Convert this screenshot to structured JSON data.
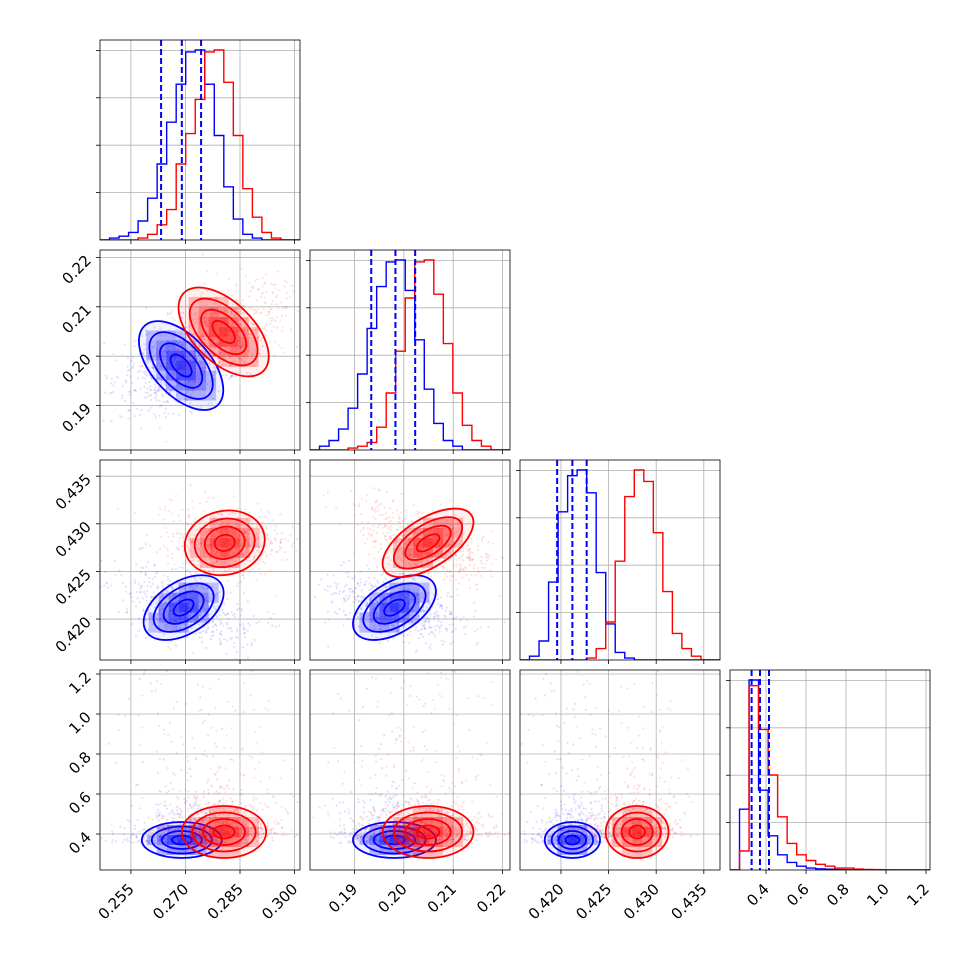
{
  "chart_data": {
    "type": "corner",
    "colors": {
      "blue": "#0000ff",
      "red": "#ff0000"
    },
    "grid": true,
    "parameters": [
      {
        "key": "p0",
        "range": [
          0.2465,
          0.3015
        ],
        "ticks": [
          0.255,
          0.27,
          0.285,
          0.3
        ],
        "tick_labels": [
          "0.255",
          "0.270",
          "0.285",
          "0.300"
        ]
      },
      {
        "key": "p1",
        "range": [
          0.181,
          0.2215
        ],
        "ticks": [
          0.19,
          0.2,
          0.21,
          0.22
        ],
        "tick_labels": [
          "0.19",
          "0.20",
          "0.21",
          "0.22"
        ]
      },
      {
        "key": "p2",
        "range": [
          0.4157,
          0.4367
        ],
        "ticks": [
          0.42,
          0.425,
          0.43,
          0.435
        ],
        "tick_labels": [
          "0.420",
          "0.425",
          "0.430",
          "0.435"
        ]
      },
      {
        "key": "p3",
        "range": [
          0.22,
          1.22
        ],
        "ticks": [
          0.4,
          0.6,
          0.8,
          1.0,
          1.2
        ],
        "tick_labels": [
          "0.4",
          "0.6",
          "0.8",
          "1.0",
          "1.2"
        ]
      }
    ],
    "series": [
      {
        "name": "",
        "color": "#0000ff",
        "means": [
          0.269,
          0.1983,
          0.4212,
          0.37
        ],
        "quantiles": [
          [
            0.2633,
            0.269,
            0.2743
          ],
          [
            0.1934,
            0.1983,
            0.2023
          ],
          [
            0.4196,
            0.4212,
            0.4227
          ],
          [
            0.328,
            0.37,
            0.415
          ]
        ],
        "hist": [
          {
            "edges": [
              0.2465,
              0.3015
            ],
            "counts": [
              0,
              1,
              2,
              4,
              10,
              22,
              40,
              62,
              82,
              99,
              100,
              82,
              55,
              28,
              11,
              3,
              1,
              0,
              0,
              0,
              0
            ]
          },
          {
            "edges": [
              0.181,
              0.2215
            ],
            "counts": [
              0,
              2,
              5,
              11,
              22,
              40,
              64,
              86,
              99,
              100,
              84,
              58,
              32,
              14,
              5,
              2,
              0,
              0,
              0,
              0,
              0
            ]
          },
          {
            "edges": [
              0.4157,
              0.4367
            ],
            "counts": [
              0,
              2,
              10,
              41,
              78,
              97,
              100,
              88,
              46,
              19,
              4,
              1,
              0,
              0,
              0,
              0,
              0,
              0,
              0,
              0,
              0
            ]
          },
          {
            "edges": [
              0.22,
              1.22
            ],
            "counts": [
              0,
              32,
              100,
              42,
              18,
              8,
              4,
              2,
              1,
              0.6,
              0.4,
              0.2,
              0.1,
              0,
              0,
              0,
              0,
              0,
              0,
              0,
              0
            ]
          }
        ],
        "pairs": [
          {
            "x": 0,
            "y": 1,
            "center": [
              0.2688,
              0.1981
            ],
            "sx": 0.0058,
            "sy": 0.0045,
            "corr": -0.55
          },
          {
            "x": 0,
            "y": 2,
            "center": [
              0.2695,
              0.4212
            ],
            "sx": 0.0055,
            "sy": 0.0017,
            "corr": 0.45
          },
          {
            "x": 0,
            "y": 3,
            "center": [
              0.269,
              0.37
            ],
            "sx": 0.0055,
            "sy": 0.045,
            "corr": 0.0
          },
          {
            "x": 1,
            "y": 2,
            "center": [
              0.1981,
              0.4212
            ],
            "sx": 0.0042,
            "sy": 0.0017,
            "corr": 0.5
          },
          {
            "x": 1,
            "y": 3,
            "center": [
              0.1981,
              0.37
            ],
            "sx": 0.0042,
            "sy": 0.045,
            "corr": 0.0
          },
          {
            "x": 2,
            "y": 3,
            "center": [
              0.4212,
              0.37
            ],
            "sx": 0.00145,
            "sy": 0.045,
            "corr": 0.0
          }
        ]
      },
      {
        "name": "",
        "color": "#ff0000",
        "means": [
          0.281,
          0.2049,
          0.428,
          0.41
        ],
        "quantiles": [
          [
            0.276,
            0.281,
            0.286
          ],
          [
            0.2005,
            0.2049,
            0.209
          ],
          [
            0.4265,
            0.428,
            0.4295
          ],
          [
            0.35,
            0.41,
            0.5
          ]
        ],
        "hist": [
          {
            "edges": [
              0.2465,
              0.3015
            ],
            "counts": [
              0,
              0,
              0,
              0,
              1,
              3,
              8,
              16,
              40,
              56,
              74,
              99,
              100,
              83,
              55,
              27,
              12,
              4,
              1,
              0,
              0
            ]
          },
          {
            "edges": [
              0.181,
              0.2215
            ],
            "counts": [
              0,
              0,
              0,
              0,
              1,
              2,
              4,
              12,
              30,
              52,
              80,
              99,
              100,
              82,
              56,
              30,
              13,
              5,
              2,
              0,
              0
            ]
          },
          {
            "edges": [
              0.4157,
              0.4367
            ],
            "counts": [
              0,
              0,
              0,
              0,
              0,
              0,
              0,
              1,
              6,
              20,
              52,
              86,
              100,
              94,
              67,
              36,
              14,
              6,
              2,
              0,
              0
            ]
          },
          {
            "edges": [
              0.22,
              1.22
            ],
            "counts": [
              0,
              10,
              97,
              74,
              50,
              28,
              14,
              8,
              5,
              3,
              2,
              1,
              1,
              0.5,
              0.3,
              0.2,
              0.1,
              0,
              0,
              0,
              0
            ]
          }
        ],
        "pairs": [
          {
            "x": 0,
            "y": 1,
            "center": [
              0.2805,
              0.2049
            ],
            "sx": 0.0062,
            "sy": 0.0045,
            "corr": -0.55
          },
          {
            "x": 0,
            "y": 2,
            "center": [
              0.2808,
              0.428
            ],
            "sx": 0.0055,
            "sy": 0.0017,
            "corr": 0.1
          },
          {
            "x": 0,
            "y": 3,
            "center": [
              0.2806,
              0.41
            ],
            "sx": 0.0058,
            "sy": 0.065,
            "corr": 0.0
          },
          {
            "x": 1,
            "y": 2,
            "center": [
              0.2049,
              0.428
            ],
            "sx": 0.0046,
            "sy": 0.0018,
            "corr": 0.6
          },
          {
            "x": 1,
            "y": 3,
            "center": [
              0.2049,
              0.41
            ],
            "sx": 0.0046,
            "sy": 0.065,
            "corr": 0.0
          },
          {
            "x": 2,
            "y": 3,
            "center": [
              0.428,
              0.41
            ],
            "sx": 0.00165,
            "sy": 0.065,
            "corr": 0.0
          }
        ]
      }
    ]
  }
}
